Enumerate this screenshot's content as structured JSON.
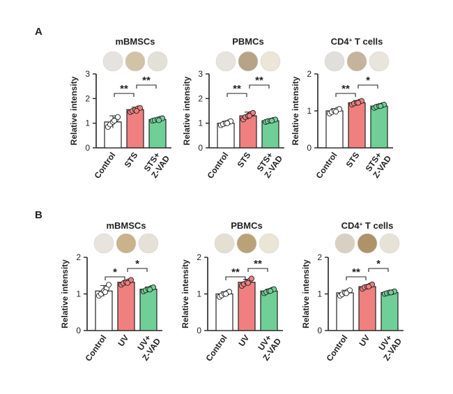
{
  "panel_labels": [
    "A",
    "B"
  ],
  "colors": {
    "control": "#ffffff",
    "treated": "#f08080",
    "zvad": "#6fcf97",
    "axis": "#222222",
    "text": "#222222"
  },
  "chart_data": [
    {
      "type": "bar",
      "panel": "A",
      "title": "mBMSCs",
      "title_sup": "",
      "ylabel": "Relative intensity",
      "ylim": [
        0,
        3
      ],
      "yticks": [
        0,
        1,
        2,
        3
      ],
      "categories": [
        "Control",
        "STS",
        "STS+\nZ-VAD"
      ],
      "values": [
        1.05,
        1.55,
        1.15
      ],
      "errors": [
        0.25,
        0.1,
        0.05
      ],
      "points": [
        [
          0.85,
          0.95,
          1.05,
          1.15,
          1.25,
          1.1
        ],
        [
          1.45,
          1.5,
          1.55,
          1.6,
          1.62,
          1.5
        ],
        [
          1.1,
          1.12,
          1.15,
          1.18,
          1.2,
          1.12
        ]
      ],
      "dot_colors": [
        "#e5e2df",
        "#d2c2a6",
        "#e2e0d7"
      ],
      "significance": [
        {
          "from": 0,
          "to": 1,
          "label": "**"
        },
        {
          "from": 1,
          "to": 2,
          "label": "**"
        }
      ]
    },
    {
      "type": "bar",
      "panel": "A",
      "title": "PBMCs",
      "title_sup": "",
      "ylabel": "Relative intensity",
      "ylim": [
        0,
        3
      ],
      "yticks": [
        0,
        1,
        2,
        3
      ],
      "categories": [
        "Control",
        "STS",
        "STS+\nZ-VAD"
      ],
      "values": [
        1.0,
        1.3,
        1.1
      ],
      "errors": [
        0.08,
        0.15,
        0.07
      ],
      "points": [
        [
          0.92,
          0.96,
          1.0,
          1.04,
          1.08,
          1.0
        ],
        [
          1.15,
          1.25,
          1.3,
          1.38,
          1.42,
          1.3
        ],
        [
          1.05,
          1.08,
          1.1,
          1.13,
          1.15,
          1.1
        ]
      ],
      "dot_colors": [
        "#e7e4df",
        "#b7a386",
        "#ebe6d8"
      ],
      "significance": [
        {
          "from": 0,
          "to": 1,
          "label": "**"
        },
        {
          "from": 1,
          "to": 2,
          "label": "**"
        }
      ]
    },
    {
      "type": "bar",
      "panel": "A",
      "title": "CD4",
      "title_sup": "+",
      "title_suffix": " T cells",
      "ylabel": "Relative intensity",
      "ylim": [
        0,
        2
      ],
      "yticks": [
        0,
        1,
        2
      ],
      "categories": [
        "Control",
        "STS",
        "STS+\nZ-VAD"
      ],
      "values": [
        1.0,
        1.22,
        1.13
      ],
      "errors": [
        0.06,
        0.06,
        0.05
      ],
      "points": [
        [
          0.93,
          0.97,
          1.0,
          1.03,
          1.05,
          0.98
        ],
        [
          1.17,
          1.2,
          1.22,
          1.25,
          1.27,
          1.22
        ],
        [
          1.08,
          1.11,
          1.13,
          1.15,
          1.17,
          1.13
        ]
      ],
      "dot_colors": [
        "#e1dfdc",
        "#c5b39d",
        "#e9e5dc"
      ],
      "significance": [
        {
          "from": 0,
          "to": 1,
          "label": "**"
        },
        {
          "from": 1,
          "to": 2,
          "label": "*"
        }
      ]
    },
    {
      "type": "bar",
      "panel": "B",
      "title": "mBMSCs",
      "title_sup": "",
      "ylabel": "Relative intensity",
      "ylim": [
        0,
        2
      ],
      "yticks": [
        0,
        1,
        2
      ],
      "categories": [
        "Control",
        "UV",
        "UV+\nZ-VAD"
      ],
      "values": [
        1.08,
        1.32,
        1.13
      ],
      "errors": [
        0.15,
        0.05,
        0.06
      ],
      "points": [
        [
          0.95,
          1.0,
          1.08,
          1.15,
          1.25,
          1.05
        ],
        [
          1.25,
          1.29,
          1.32,
          1.35,
          1.38,
          1.3
        ],
        [
          1.07,
          1.1,
          1.13,
          1.16,
          1.18,
          1.12
        ]
      ],
      "dot_colors": [
        "#e8e4dd",
        "#c9b28c",
        "#e6e1d8"
      ],
      "significance": [
        {
          "from": 0,
          "to": 1,
          "label": "*"
        },
        {
          "from": 1,
          "to": 2,
          "label": "*"
        }
      ]
    },
    {
      "type": "bar",
      "panel": "B",
      "title": "PBMCs",
      "title_sup": "",
      "ylabel": "Relative intensity",
      "ylim": [
        0,
        2
      ],
      "yticks": [
        0,
        1,
        2
      ],
      "categories": [
        "Control",
        "UV",
        "UV+\nZ-VAD"
      ],
      "values": [
        1.0,
        1.32,
        1.08
      ],
      "errors": [
        0.06,
        0.08,
        0.05
      ],
      "points": [
        [
          0.92,
          0.96,
          1.0,
          1.03,
          1.06,
          1.0
        ],
        [
          1.22,
          1.27,
          1.32,
          1.36,
          1.42,
          1.3
        ],
        [
          1.02,
          1.05,
          1.08,
          1.11,
          1.13,
          1.08
        ]
      ],
      "dot_colors": [
        "#e5dfd3",
        "#b9a27a",
        "#ebe5d6"
      ],
      "significance": [
        {
          "from": 0,
          "to": 1,
          "label": "**"
        },
        {
          "from": 1,
          "to": 2,
          "label": "**"
        }
      ]
    },
    {
      "type": "bar",
      "panel": "B",
      "title": "CD4",
      "title_sup": "+",
      "title_suffix": " T cells",
      "ylabel": "Relative intensity",
      "ylim": [
        0,
        2
      ],
      "yticks": [
        0,
        1,
        2
      ],
      "categories": [
        "Control",
        "UV",
        "UV+\nZ-VAD"
      ],
      "values": [
        1.03,
        1.2,
        1.04
      ],
      "errors": [
        0.07,
        0.05,
        0.03
      ],
      "points": [
        [
          0.95,
          0.99,
          1.03,
          1.07,
          1.1,
          1.02
        ],
        [
          1.14,
          1.18,
          1.2,
          1.23,
          1.26,
          1.2
        ],
        [
          1.0,
          1.02,
          1.04,
          1.05,
          1.07,
          1.04
        ]
      ],
      "dot_colors": [
        "#d9d0c4",
        "#ae936a",
        "#e7e2d8"
      ],
      "significance": [
        {
          "from": 0,
          "to": 1,
          "label": "**"
        },
        {
          "from": 1,
          "to": 2,
          "label": "*"
        }
      ]
    }
  ]
}
